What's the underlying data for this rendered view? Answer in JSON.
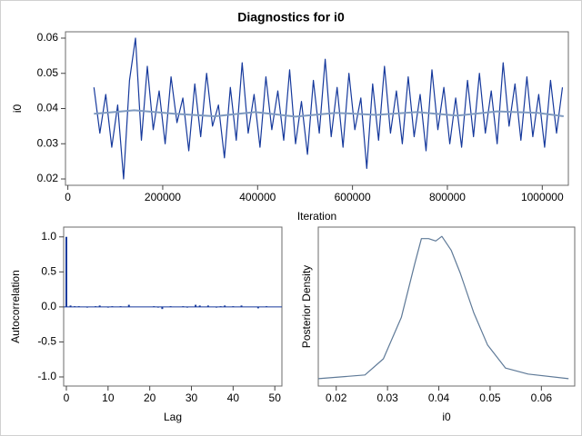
{
  "title": "Diagnostics for i0",
  "chart_data": [
    {
      "type": "line",
      "xlabel": "Iteration",
      "ylabel": "i0",
      "xlim": [
        -5000,
        1055000
      ],
      "ylim": [
        0.0182,
        0.0618
      ],
      "xticks": [
        0,
        200000,
        400000,
        600000,
        800000,
        1000000
      ],
      "yticks": [
        0.02,
        0.03,
        0.04,
        0.05,
        0.06
      ],
      "series": [
        {
          "color": "#16399c",
          "x": [
            55000,
            67500,
            80000,
            92500,
            105000,
            117500,
            130000,
            142500,
            155000,
            167500,
            180000,
            192500,
            205000,
            217500,
            230000,
            242500,
            255000,
            267500,
            280000,
            292500,
            305000,
            317500,
            330000,
            342500,
            355000,
            367500,
            380000,
            392500,
            405000,
            417500,
            430000,
            442500,
            455000,
            467500,
            480000,
            492500,
            505000,
            517500,
            530000,
            542500,
            555000,
            567500,
            580000,
            592500,
            605000,
            617500,
            630000,
            642500,
            655000,
            667500,
            680000,
            692500,
            705000,
            717500,
            730000,
            742500,
            755000,
            767500,
            780000,
            792500,
            805000,
            817500,
            830000,
            842500,
            855000,
            867500,
            880000,
            892500,
            905000,
            917500,
            930000,
            942500,
            955000,
            967500,
            980000,
            992500,
            1005000,
            1017500,
            1030000,
            1042500
          ],
          "values": [
            0.046,
            0.033,
            0.044,
            0.029,
            0.041,
            0.02,
            0.048,
            0.06,
            0.031,
            0.052,
            0.034,
            0.045,
            0.03,
            0.049,
            0.036,
            0.043,
            0.028,
            0.047,
            0.032,
            0.05,
            0.035,
            0.041,
            0.026,
            0.046,
            0.031,
            0.053,
            0.033,
            0.044,
            0.029,
            0.049,
            0.034,
            0.045,
            0.031,
            0.051,
            0.03,
            0.042,
            0.027,
            0.048,
            0.033,
            0.054,
            0.032,
            0.046,
            0.029,
            0.05,
            0.034,
            0.043,
            0.023,
            0.047,
            0.031,
            0.052,
            0.033,
            0.045,
            0.03,
            0.049,
            0.032,
            0.044,
            0.028,
            0.051,
            0.034,
            0.046,
            0.03,
            0.043,
            0.029,
            0.048,
            0.032,
            0.05,
            0.033,
            0.045,
            0.03,
            0.053,
            0.035,
            0.047,
            0.031,
            0.049,
            0.032,
            0.044,
            0.029,
            0.048,
            0.033,
            0.046
          ]
        },
        {
          "color": "#7f9ac0",
          "x": [
            55000,
            140000,
            225000,
            310000,
            395000,
            480000,
            565000,
            650000,
            735000,
            820000,
            905000,
            990000,
            1045000
          ],
          "values": [
            0.0385,
            0.0395,
            0.0385,
            0.0378,
            0.039,
            0.0377,
            0.0388,
            0.0382,
            0.039,
            0.038,
            0.0392,
            0.0388,
            0.0378
          ]
        }
      ]
    },
    {
      "type": "bar",
      "xlabel": "Lag",
      "ylabel": "Autocorrelation",
      "xlim": [
        -0.65,
        51.7
      ],
      "ylim": [
        -1.13,
        1.14
      ],
      "xticks": [
        0,
        10,
        20,
        30,
        40,
        50
      ],
      "yticks": [
        {
          "value": 1,
          "label": "1.0"
        },
        0.5,
        {
          "value": 0,
          "label": "0.0"
        },
        -0.5,
        {
          "value": -1,
          "label": "-1.0"
        }
      ],
      "color": "#16399c",
      "x": [
        0,
        1,
        2,
        3,
        4,
        5,
        6,
        7,
        8,
        9,
        10,
        11,
        12,
        13,
        14,
        15,
        16,
        17,
        18,
        19,
        20,
        21,
        22,
        23,
        24,
        25,
        26,
        27,
        28,
        29,
        30,
        31,
        32,
        33,
        34,
        35,
        36,
        37,
        38,
        39,
        40,
        41,
        42,
        43,
        44,
        45,
        46,
        47,
        48,
        49,
        50
      ],
      "values": [
        1.0,
        0.02,
        0.01,
        0.01,
        0.0,
        -0.01,
        0.0,
        0.01,
        0.02,
        0.0,
        -0.01,
        0.01,
        0.0,
        0.01,
        0.0,
        0.03,
        0.0,
        0.0,
        0.0,
        0.0,
        0.0,
        0.01,
        -0.01,
        -0.03,
        0.0,
        0.01,
        0.0,
        0.0,
        0.01,
        -0.01,
        0.0,
        0.03,
        0.02,
        0.0,
        0.02,
        0.0,
        -0.01,
        0.01,
        0.02,
        0.0,
        0.01,
        0.0,
        0.02,
        0.0,
        0.0,
        0.0,
        -0.02,
        0.0,
        0.01,
        0.0,
        0.0
      ]
    },
    {
      "type": "line",
      "xlabel": "i0",
      "ylabel": "Posterior Density",
      "xlim": [
        0.0165,
        0.0665
      ],
      "ylim": [
        -2.8,
        66
      ],
      "xticks": [
        0.02,
        0.03,
        0.04,
        0.05,
        0.06
      ],
      "series": [
        {
          "color": "#5f7a98",
          "x": [
            0.0165,
            0.0256,
            0.0292,
            0.0327,
            0.0353,
            0.0366,
            0.038,
            0.0394,
            0.0406,
            0.0424,
            0.0442,
            0.0468,
            0.0495,
            0.053,
            0.0574,
            0.0653
          ],
          "values": [
            0.4,
            2,
            9,
            27,
            50,
            61,
            61,
            60,
            62,
            56,
            46,
            29,
            15,
            5,
            2.4,
            0.4
          ]
        }
      ]
    }
  ]
}
